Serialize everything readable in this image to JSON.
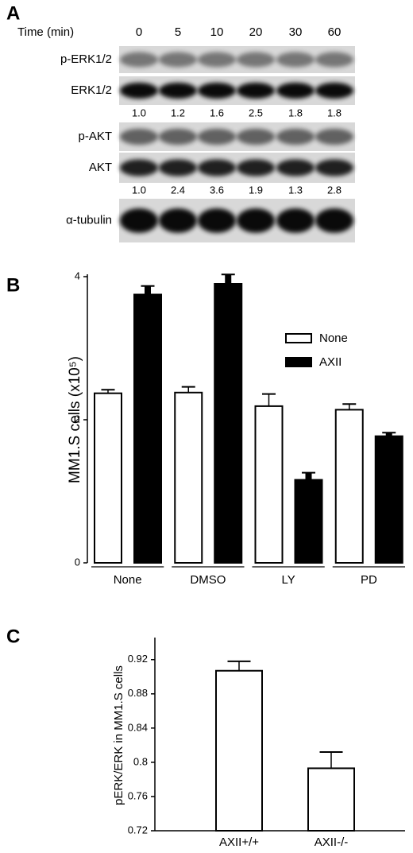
{
  "panel_a": {
    "label": "A",
    "time_header": "Time (min)",
    "times": [
      0,
      5,
      10,
      20,
      30,
      60
    ],
    "rows": [
      "p-ERK1/2",
      "ERK1/2",
      "p-AKT",
      "AKT",
      "α-tubulin"
    ],
    "erk_ratios": [
      "1.0",
      "1.2",
      "1.6",
      "2.5",
      "1.8",
      "1.8"
    ],
    "akt_ratios": [
      "1.0",
      "2.4",
      "3.6",
      "1.9",
      "1.3",
      "2.8"
    ]
  },
  "chart_data": [
    {
      "type": "bar",
      "panel_label": "B",
      "ylabel": "MM1.S cells (x10⁵)",
      "categories": [
        "None",
        "DMSO",
        "LY",
        "PD"
      ],
      "series": [
        {
          "name": "None",
          "color": "#ffffff",
          "values": [
            2.37,
            2.38,
            2.19,
            2.14
          ],
          "errors": [
            0.05,
            0.08,
            0.17,
            0.08
          ]
        },
        {
          "name": "AXII",
          "color": "#000000",
          "values": [
            3.75,
            3.9,
            1.16,
            1.77
          ],
          "errors": [
            0.12,
            0.13,
            0.1,
            0.05
          ]
        }
      ],
      "ylim": [
        0,
        4
      ],
      "yticks": [
        0,
        2,
        4
      ],
      "legend": "upper right"
    },
    {
      "type": "bar",
      "panel_label": "C",
      "ylabel": "pERK/ERK in MM1.S cells",
      "categories": [
        "AXII+/+",
        "AXII-/-"
      ],
      "values": [
        0.907,
        0.793
      ],
      "errors": [
        0.011,
        0.019
      ],
      "color": "#ffffff",
      "ylim": [
        0.72,
        0.943
      ],
      "yticks": [
        0.72,
        0.76,
        0.8,
        0.84,
        0.88,
        0.92
      ]
    }
  ]
}
